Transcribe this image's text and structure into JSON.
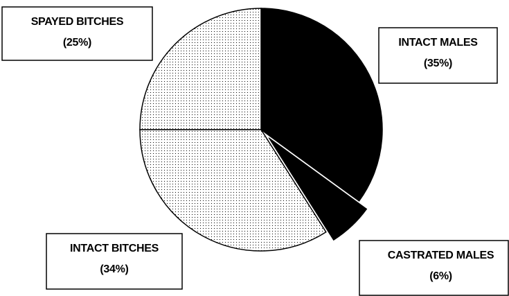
{
  "chart_data": {
    "type": "pie",
    "categories": [
      "INTACT MALES",
      "CASTRATED MALES",
      "INTACT BITCHES",
      "SPAYED BITCHES"
    ],
    "values": [
      35,
      6,
      34,
      25
    ],
    "value_labels": [
      "(35%)",
      "(6%)",
      "(34%)",
      "(25%)"
    ],
    "color": "#000000",
    "fills": [
      "solid",
      "solid",
      "dotted",
      "dotted"
    ],
    "exploded": [
      false,
      true,
      false,
      false
    ]
  }
}
